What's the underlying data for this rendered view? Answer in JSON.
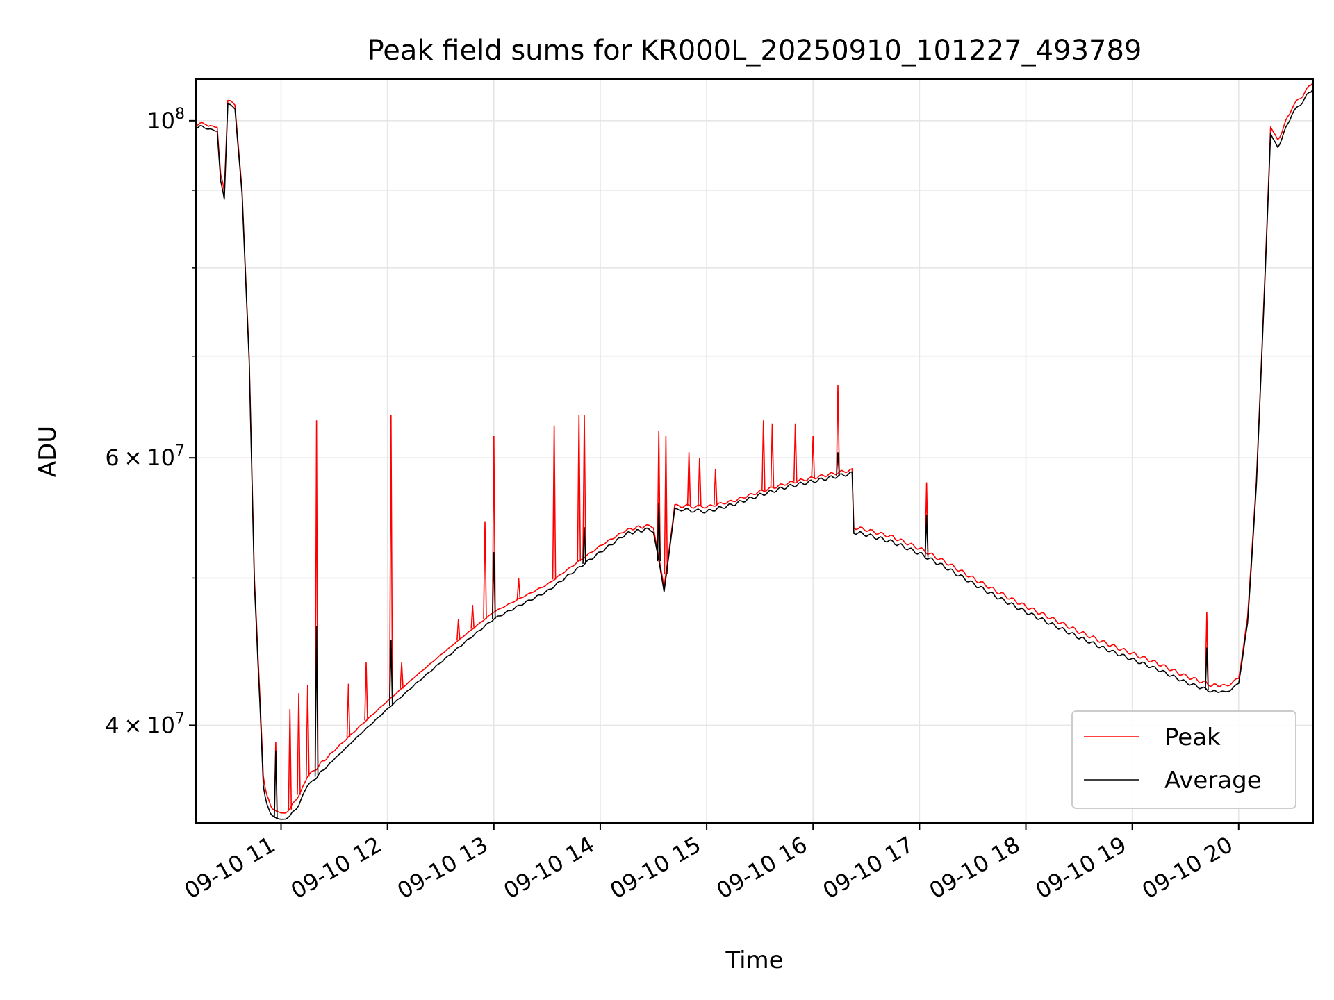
{
  "chart_data": {
    "type": "line",
    "title": "Peak field sums for KR000L_20250910_101227_493789",
    "xlabel": "Time",
    "ylabel": "ADU",
    "y_scale": "log",
    "grid": true,
    "legend_position": "lower-right",
    "xlim": [
      "2025-09-10 10:12",
      "2025-09-10 20:42"
    ],
    "ylim": [
      34500000,
      106500000
    ],
    "x_ticks": [
      {
        "at": "2025-09-10 11:00",
        "label": "09-10 11"
      },
      {
        "at": "2025-09-10 12:00",
        "label": "09-10 12"
      },
      {
        "at": "2025-09-10 13:00",
        "label": "09-10 13"
      },
      {
        "at": "2025-09-10 14:00",
        "label": "09-10 14"
      },
      {
        "at": "2025-09-10 15:00",
        "label": "09-10 15"
      },
      {
        "at": "2025-09-10 16:00",
        "label": "09-10 16"
      },
      {
        "at": "2025-09-10 17:00",
        "label": "09-10 17"
      },
      {
        "at": "2025-09-10 18:00",
        "label": "09-10 18"
      },
      {
        "at": "2025-09-10 19:00",
        "label": "09-10 19"
      },
      {
        "at": "2025-09-10 20:00",
        "label": "09-10 20"
      }
    ],
    "y_ticks": [
      {
        "value": 40000000,
        "mantissa": "4",
        "exponent": "7"
      },
      {
        "value": 60000000,
        "mantissa": "6",
        "exponent": "7"
      },
      {
        "value": 100000000,
        "mantissa": "",
        "exponent": "8"
      }
    ],
    "y_minor_ticks": [
      50000000,
      70000000,
      80000000,
      90000000
    ],
    "series": [
      {
        "name": "Peak",
        "color": "#ff0000",
        "x": [
          "2025-09-10 10:12",
          "2025-09-10 10:18",
          "2025-09-10 10:20",
          "2025-09-10 10:24",
          "2025-09-10 10:26",
          "2025-09-10 10:28",
          "2025-09-10 10:30",
          "2025-09-10 10:34",
          "2025-09-10 10:38",
          "2025-09-10 10:42",
          "2025-09-10 10:45",
          "2025-09-10 10:48",
          "2025-09-10 10:50",
          "2025-09-10 10:52",
          "2025-09-10 10:55",
          "2025-09-10 11:00",
          "2025-09-10 11:05",
          "2025-09-10 11:10",
          "2025-09-10 11:15",
          "2025-09-10 11:20",
          "2025-09-10 11:30",
          "2025-09-10 11:45",
          "2025-09-10 12:00",
          "2025-09-10 12:15",
          "2025-09-10 12:30",
          "2025-09-10 12:45",
          "2025-09-10 13:00",
          "2025-09-10 13:15",
          "2025-09-10 13:30",
          "2025-09-10 13:45",
          "2025-09-10 14:00",
          "2025-09-10 14:15",
          "2025-09-10 14:25",
          "2025-09-10 14:30",
          "2025-09-10 14:36",
          "2025-09-10 14:42",
          "2025-09-10 15:00",
          "2025-09-10 15:15",
          "2025-09-10 15:30",
          "2025-09-10 15:45",
          "2025-09-10 16:00",
          "2025-09-10 16:15",
          "2025-09-10 16:22",
          "2025-09-10 16:23",
          "2025-09-10 16:30",
          "2025-09-10 16:45",
          "2025-09-10 17:00",
          "2025-09-10 17:15",
          "2025-09-10 17:30",
          "2025-09-10 17:45",
          "2025-09-10 18:00",
          "2025-09-10 18:15",
          "2025-09-10 18:30",
          "2025-09-10 18:45",
          "2025-09-10 19:00",
          "2025-09-10 19:15",
          "2025-09-10 19:30",
          "2025-09-10 19:45",
          "2025-09-10 19:55",
          "2025-09-10 20:00",
          "2025-09-10 20:05",
          "2025-09-10 20:10",
          "2025-09-10 20:15",
          "2025-09-10 20:18",
          "2025-09-10 20:22",
          "2025-09-10 20:30",
          "2025-09-10 20:42"
        ],
        "y": [
          99500000,
          99500000,
          99000000,
          99000000,
          92000000,
          90000000,
          103000000,
          102500000,
          90000000,
          70000000,
          50000000,
          42000000,
          37000000,
          36000000,
          35200000,
          35000000,
          35200000,
          36000000,
          37000000,
          37500000,
          38500000,
          40000000,
          41500000,
          43000000,
          44500000,
          46000000,
          47500000,
          48500000,
          49500000,
          51000000,
          52500000,
          53800000,
          54100000,
          54000000,
          49300000,
          55800000,
          55700000,
          56200000,
          57000000,
          57700000,
          58200000,
          58700000,
          58900000,
          54000000,
          53800000,
          53200000,
          52300000,
          51200000,
          50000000,
          48900000,
          47900000,
          47000000,
          46100000,
          45300000,
          44600000,
          43900000,
          43100000,
          42500000,
          42500000,
          43000000,
          47000000,
          58000000,
          80000000,
          99000000,
          97000000,
          102000000,
          106000000
        ],
        "spikes": [
          {
            "x": "2025-09-10 10:57",
            "y": 39000000
          },
          {
            "x": "2025-09-10 11:05",
            "y": 41000000
          },
          {
            "x": "2025-09-10 11:10",
            "y": 42000000
          },
          {
            "x": "2025-09-10 11:15",
            "y": 42500000
          },
          {
            "x": "2025-09-10 11:20",
            "y": 63500000
          },
          {
            "x": "2025-09-10 11:38",
            "y": 42600000
          },
          {
            "x": "2025-09-10 11:48",
            "y": 44000000
          },
          {
            "x": "2025-09-10 12:02",
            "y": 64000000
          },
          {
            "x": "2025-09-10 12:08",
            "y": 44000000
          },
          {
            "x": "2025-09-10 12:40",
            "y": 47000000
          },
          {
            "x": "2025-09-10 12:48",
            "y": 48000000
          },
          {
            "x": "2025-09-10 12:55",
            "y": 54500000
          },
          {
            "x": "2025-09-10 13:00",
            "y": 62000000
          },
          {
            "x": "2025-09-10 13:14",
            "y": 50000000
          },
          {
            "x": "2025-09-10 13:34",
            "y": 63000000
          },
          {
            "x": "2025-09-10 13:48",
            "y": 64000000
          },
          {
            "x": "2025-09-10 13:51",
            "y": 64000000
          },
          {
            "x": "2025-09-10 14:33",
            "y": 62500000
          },
          {
            "x": "2025-09-10 14:37",
            "y": 62000000
          },
          {
            "x": "2025-09-10 14:50",
            "y": 60500000
          },
          {
            "x": "2025-09-10 14:56",
            "y": 60000000
          },
          {
            "x": "2025-09-10 15:05",
            "y": 59000000
          },
          {
            "x": "2025-09-10 15:32",
            "y": 63500000
          },
          {
            "x": "2025-09-10 15:37",
            "y": 63200000
          },
          {
            "x": "2025-09-10 15:50",
            "y": 63200000
          },
          {
            "x": "2025-09-10 16:00",
            "y": 62000000
          },
          {
            "x": "2025-09-10 16:14",
            "y": 67000000
          },
          {
            "x": "2025-09-10 17:04",
            "y": 57800000
          },
          {
            "x": "2025-09-10 19:42",
            "y": 47500000
          }
        ]
      },
      {
        "name": "Average",
        "color": "#000000",
        "x": [
          "2025-09-10 10:12",
          "2025-09-10 10:18",
          "2025-09-10 10:20",
          "2025-09-10 10:24",
          "2025-09-10 10:26",
          "2025-09-10 10:28",
          "2025-09-10 10:30",
          "2025-09-10 10:34",
          "2025-09-10 10:38",
          "2025-09-10 10:42",
          "2025-09-10 10:45",
          "2025-09-10 10:48",
          "2025-09-10 10:50",
          "2025-09-10 10:52",
          "2025-09-10 10:55",
          "2025-09-10 11:00",
          "2025-09-10 11:05",
          "2025-09-10 11:10",
          "2025-09-10 11:15",
          "2025-09-10 11:20",
          "2025-09-10 11:30",
          "2025-09-10 11:45",
          "2025-09-10 12:00",
          "2025-09-10 12:15",
          "2025-09-10 12:30",
          "2025-09-10 12:45",
          "2025-09-10 13:00",
          "2025-09-10 13:15",
          "2025-09-10 13:30",
          "2025-09-10 13:45",
          "2025-09-10 14:00",
          "2025-09-10 14:15",
          "2025-09-10 14:25",
          "2025-09-10 14:30",
          "2025-09-10 14:36",
          "2025-09-10 14:42",
          "2025-09-10 15:00",
          "2025-09-10 15:15",
          "2025-09-10 15:30",
          "2025-09-10 15:45",
          "2025-09-10 16:00",
          "2025-09-10 16:15",
          "2025-09-10 16:22",
          "2025-09-10 16:23",
          "2025-09-10 16:30",
          "2025-09-10 16:45",
          "2025-09-10 17:00",
          "2025-09-10 17:15",
          "2025-09-10 17:30",
          "2025-09-10 17:45",
          "2025-09-10 18:00",
          "2025-09-10 18:15",
          "2025-09-10 18:30",
          "2025-09-10 18:45",
          "2025-09-10 19:00",
          "2025-09-10 19:15",
          "2025-09-10 19:30",
          "2025-09-10 19:45",
          "2025-09-10 19:55",
          "2025-09-10 20:00",
          "2025-09-10 20:05",
          "2025-09-10 20:10",
          "2025-09-10 20:15",
          "2025-09-10 20:18",
          "2025-09-10 20:22",
          "2025-09-10 20:30",
          "2025-09-10 20:42"
        ],
        "y": [
          99000000,
          99000000,
          98500000,
          98500000,
          91000000,
          89000000,
          102500000,
          102000000,
          89500000,
          69500000,
          49500000,
          41500000,
          36500000,
          35500000,
          34800000,
          34700000,
          34800000,
          35500000,
          36500000,
          37000000,
          38000000,
          39500000,
          41000000,
          42500000,
          44000000,
          45500000,
          47000000,
          48000000,
          49000000,
          50500000,
          52000000,
          53500000,
          53800000,
          53700000,
          49000000,
          55500000,
          55300000,
          55900000,
          56700000,
          57400000,
          57900000,
          58400000,
          58600000,
          53600000,
          53400000,
          52800000,
          51900000,
          50800000,
          49600000,
          48500000,
          47500000,
          46600000,
          45700000,
          44900000,
          44200000,
          43500000,
          42700000,
          42100000,
          42100000,
          42700000,
          46600000,
          57600000,
          79500000,
          98000000,
          96000000,
          101000000,
          105000000
        ],
        "spikes": [
          {
            "x": "2025-09-10 10:57",
            "y": 38500000
          },
          {
            "x": "2025-09-10 11:20",
            "y": 46500000
          },
          {
            "x": "2025-09-10 12:02",
            "y": 45500000
          },
          {
            "x": "2025-09-10 13:00",
            "y": 52000000
          },
          {
            "x": "2025-09-10 13:51",
            "y": 54000000
          },
          {
            "x": "2025-09-10 14:33",
            "y": 56000000
          },
          {
            "x": "2025-09-10 16:14",
            "y": 60500000
          },
          {
            "x": "2025-09-10 17:04",
            "y": 55000000
          },
          {
            "x": "2025-09-10 19:42",
            "y": 45000000
          }
        ]
      }
    ]
  }
}
